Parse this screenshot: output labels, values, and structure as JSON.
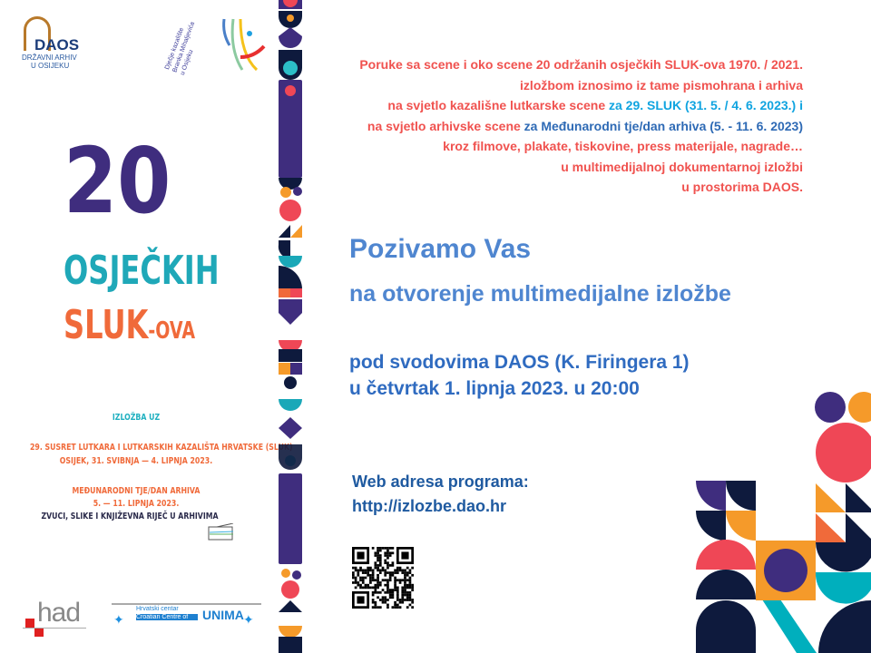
{
  "logos": {
    "daos": {
      "name": "DAOS",
      "sub1": "DRŽAVNI ARHIV",
      "sub2": "U OSIJEKU"
    },
    "theatre": {
      "line1": "Dječje kazalište",
      "line2": "Branka Mihaljevića",
      "line3": "u Osijeku"
    },
    "had": "had",
    "unima": {
      "line1": "Hrvatski centar",
      "line2": "Croatian Centre of",
      "name": "UNIMA"
    }
  },
  "poster": {
    "number": "20",
    "word": "OSJEČKIH",
    "sluk": "SLUK",
    "suffix": "-OVA",
    "izlozba_uz": "IZLOŽBA UZ",
    "event1_line1": "29. SUSRET LUTKARA I LUTKARSKIH KAZALIŠTA HRVATSKE (SLUK)",
    "event1_line2": "OSIJEK, 31. SVIBNJA — 4. LIPNJA 2023.",
    "event2_line1": "MEĐUNARODNI TJE/DAN ARHIVA",
    "event2_line2": "5. — 11. LIPNJA 2023.",
    "event2_line3": "ZVUCI, SLIKE I KNJIŽEVNA RIJEČ U ARHIVIMA"
  },
  "intro": {
    "l1": "Poruke sa scene i oko scene 20 održanih osječkih  SLUK-ova 1970. / 2021.",
    "l2": "izložbom iznosimo iz tame  pismohrana  i arhiva",
    "l3a": "na svjetlo kazališne lutkarske scene ",
    "l3b": "za 29.  SLUK (31. 5. / 4. 6. 2023.) i",
    "l4a": "na svjetlo arhivske scene ",
    "l4b": "za Međunarodni tje/dan arhiva (5. - 11. 6. 2023)",
    "l5": "kroz filmove, plakate, tiskovine, press materijale, nagrade…",
    "l6": "u multimedijalnoj  dokumentarnoj izložbi",
    "l7": "u prostorima DAOS."
  },
  "invite": {
    "title": "Pozivamo Vas",
    "subtitle": "na otvorenje multimedijalne izložbe",
    "place": "pod svodovima DAOS (K. Firingera 1)",
    "time": "u četvrtak 1. lipnja 2023. u 20:00"
  },
  "web": {
    "label": "Web adresa programa:",
    "url": "http://izlozbe.dao.hr"
  },
  "colors": {
    "purple": "#3f2d7e",
    "navy": "#0e1a3d",
    "red": "#ef4756",
    "orange": "#f59a2a",
    "teal": "#00afbd",
    "coral": "#f0524f",
    "blue": "#4f86d0"
  }
}
